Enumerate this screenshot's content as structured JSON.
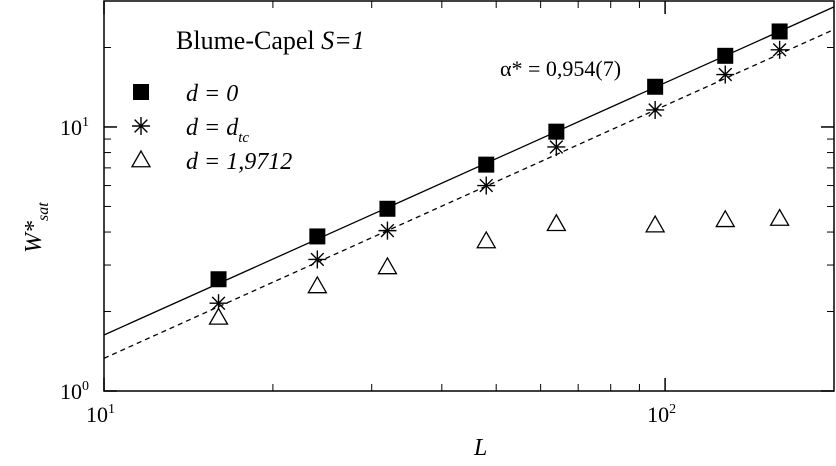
{
  "chart_data": {
    "type": "scatter",
    "x_scale": "log",
    "y_scale": "log",
    "xlim": [
      10,
      200
    ],
    "ylim": [
      1,
      30
    ],
    "xlabel": "L",
    "ylabel_main": "W*",
    "ylabel_sub": "sat",
    "title_main": "Blume-Capel ",
    "title_var": "S=1",
    "annotation": "α* = 0,954(7)",
    "x_ticks": [
      {
        "value": 10,
        "base": "10",
        "exp": "1"
      },
      {
        "value": 100,
        "base": "10",
        "exp": "2"
      }
    ],
    "y_ticks": [
      {
        "value": 1,
        "base": "10",
        "exp": "0"
      },
      {
        "value": 10,
        "base": "10",
        "exp": "1"
      }
    ],
    "series": [
      {
        "name": "d = 0",
        "label_main": "d = 0",
        "label_sub": "",
        "marker": "square",
        "x": [
          16,
          24,
          32,
          48,
          64,
          96,
          128,
          160
        ],
        "y": [
          2.65,
          3.85,
          4.9,
          7.2,
          9.6,
          14.2,
          18.6,
          23.0
        ]
      },
      {
        "name": "d = d_tc",
        "label_main": "d = d",
        "label_sub": "tc",
        "marker": "asterisk",
        "x": [
          16,
          24,
          32,
          48,
          64,
          96,
          128,
          160
        ],
        "y": [
          2.15,
          3.15,
          4.05,
          6.0,
          8.4,
          11.6,
          15.8,
          19.6
        ]
      },
      {
        "name": "d = 1,9712",
        "label_main": "d = 1,9712",
        "label_sub": "",
        "marker": "triangle",
        "x": [
          16,
          24,
          32,
          48,
          64,
          96,
          128,
          160
        ],
        "y": [
          1.9,
          2.5,
          2.95,
          3.7,
          4.3,
          4.25,
          4.45,
          4.5
        ]
      }
    ],
    "fit_lines": [
      {
        "style": "solid",
        "x": [
          10,
          200
        ],
        "y": [
          1.63,
          28.5
        ]
      },
      {
        "style": "dashed",
        "x": [
          10,
          200
        ],
        "y": [
          1.33,
          23.4
        ]
      }
    ]
  }
}
